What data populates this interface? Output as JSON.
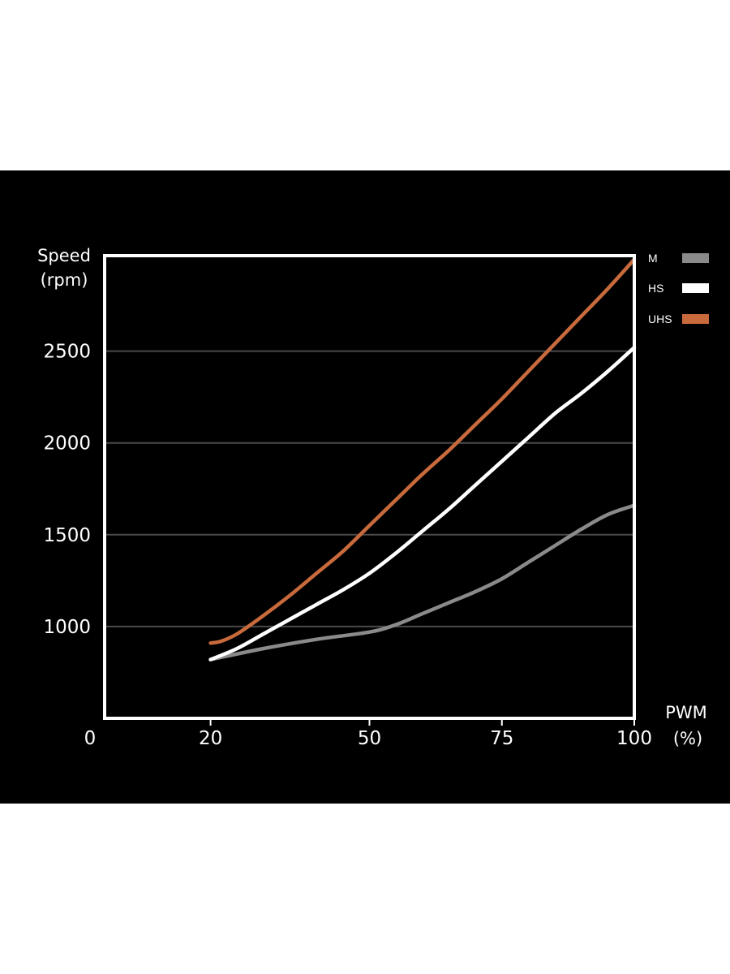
{
  "chart_data": {
    "type": "line",
    "title": "",
    "ylabel_lines": [
      "Speed",
      "(rpm)"
    ],
    "xlabel_lines": [
      "PWM",
      "(%)"
    ],
    "xlim": [
      0,
      100
    ],
    "ylim": [
      500,
      3020
    ],
    "x_ticks": [
      0,
      20,
      50,
      75,
      100
    ],
    "y_ticks": [
      1000,
      1500,
      2000,
      2500
    ],
    "grid": true,
    "legend_position": "top-right",
    "series": [
      {
        "name": "M",
        "color": "#8a8a8a",
        "points": [
          [
            20,
            820
          ],
          [
            30,
            880
          ],
          [
            40,
            930
          ],
          [
            50,
            970
          ],
          [
            55,
            1010
          ],
          [
            60,
            1070
          ],
          [
            65,
            1130
          ],
          [
            70,
            1190
          ],
          [
            75,
            1260
          ],
          [
            80,
            1350
          ],
          [
            85,
            1440
          ],
          [
            90,
            1530
          ],
          [
            95,
            1610
          ],
          [
            100,
            1660
          ]
        ]
      },
      {
        "name": "HS",
        "color": "#ffffff",
        "points": [
          [
            20,
            820
          ],
          [
            25,
            880
          ],
          [
            30,
            960
          ],
          [
            35,
            1040
          ],
          [
            40,
            1120
          ],
          [
            45,
            1200
          ],
          [
            50,
            1290
          ],
          [
            55,
            1400
          ],
          [
            60,
            1520
          ],
          [
            65,
            1640
          ],
          [
            70,
            1770
          ],
          [
            75,
            1900
          ],
          [
            80,
            2030
          ],
          [
            85,
            2160
          ],
          [
            90,
            2270
          ],
          [
            95,
            2390
          ],
          [
            100,
            2520
          ]
        ]
      },
      {
        "name": "UHS",
        "color": "#c86a3c",
        "points": [
          [
            20,
            910
          ],
          [
            22,
            920
          ],
          [
            25,
            960
          ],
          [
            30,
            1060
          ],
          [
            35,
            1170
          ],
          [
            40,
            1290
          ],
          [
            45,
            1410
          ],
          [
            50,
            1550
          ],
          [
            55,
            1690
          ],
          [
            60,
            1830
          ],
          [
            65,
            1960
          ],
          [
            70,
            2100
          ],
          [
            75,
            2240
          ],
          [
            80,
            2390
          ],
          [
            85,
            2540
          ],
          [
            90,
            2690
          ],
          [
            95,
            2840
          ],
          [
            100,
            3000
          ]
        ]
      }
    ]
  }
}
